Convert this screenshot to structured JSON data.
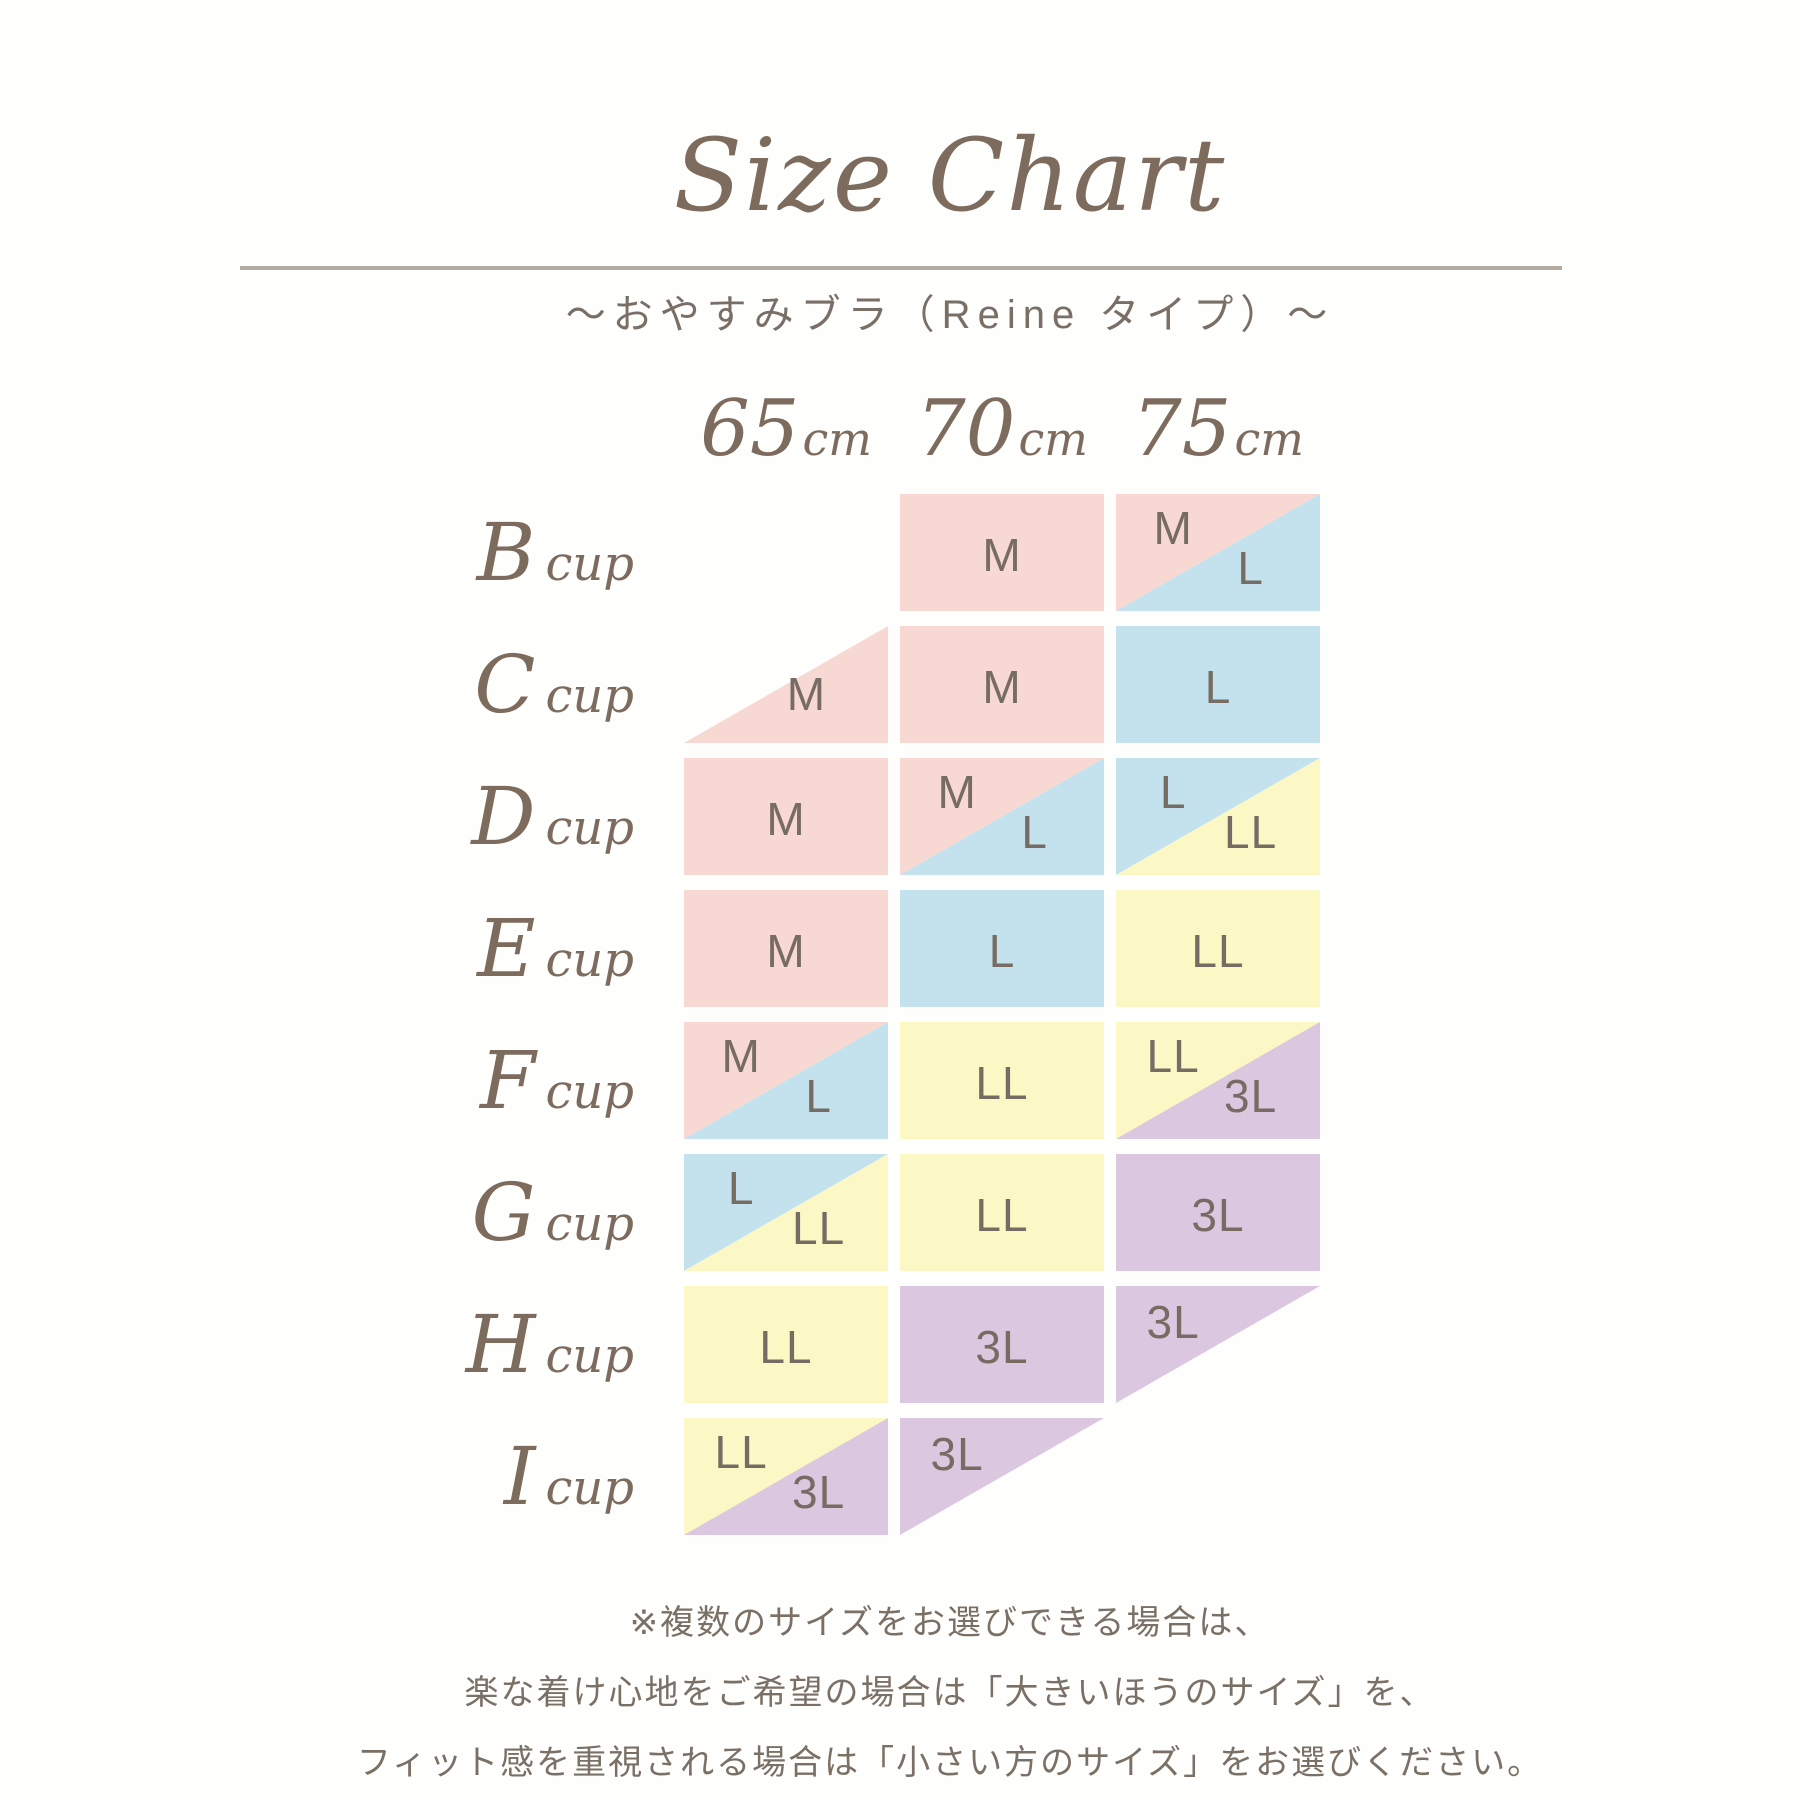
{
  "title": "Size Chart",
  "subtitle": "〜おやすみブラ（Reine タイプ）〜",
  "header": {
    "band_sizes": [
      "65",
      "70",
      "75"
    ],
    "unit": "cm"
  },
  "row_suffix": "cup",
  "size_colors": {
    "M": "#f8d8d2",
    "L": "#c4e2ee",
    "LL": "#fcf8c6",
    "3L": "#dbc7e0"
  },
  "grid": {
    "rows": [
      {
        "cup": "B",
        "cells": [
          {
            "type": "empty"
          },
          {
            "type": "full",
            "size": "M"
          },
          {
            "type": "split",
            "upper": "M",
            "lower": "L"
          }
        ]
      },
      {
        "cup": "C",
        "cells": [
          {
            "type": "half-lower",
            "size": "M"
          },
          {
            "type": "full",
            "size": "M"
          },
          {
            "type": "full",
            "size": "L"
          }
        ]
      },
      {
        "cup": "D",
        "cells": [
          {
            "type": "full",
            "size": "M"
          },
          {
            "type": "split",
            "upper": "M",
            "lower": "L"
          },
          {
            "type": "split",
            "upper": "L",
            "lower": "LL"
          }
        ]
      },
      {
        "cup": "E",
        "cells": [
          {
            "type": "full",
            "size": "M"
          },
          {
            "type": "full",
            "size": "L"
          },
          {
            "type": "full",
            "size": "LL"
          }
        ]
      },
      {
        "cup": "F",
        "cells": [
          {
            "type": "split",
            "upper": "M",
            "lower": "L"
          },
          {
            "type": "full",
            "size": "LL"
          },
          {
            "type": "split",
            "upper": "LL",
            "lower": "3L"
          }
        ]
      },
      {
        "cup": "G",
        "cells": [
          {
            "type": "split",
            "upper": "L",
            "lower": "LL"
          },
          {
            "type": "full",
            "size": "LL"
          },
          {
            "type": "full",
            "size": "3L"
          }
        ]
      },
      {
        "cup": "H",
        "cells": [
          {
            "type": "full",
            "size": "LL"
          },
          {
            "type": "full",
            "size": "3L"
          },
          {
            "type": "half-upper",
            "size": "3L"
          }
        ]
      },
      {
        "cup": "I",
        "cells": [
          {
            "type": "split",
            "upper": "LL",
            "lower": "3L"
          },
          {
            "type": "half-upper",
            "size": "3L"
          },
          {
            "type": "empty"
          }
        ]
      }
    ]
  },
  "footer": {
    "lines": [
      "※複数のサイズをお選びできる場合は、",
      "楽な着け心地をご希望の場合は「大きいほうのサイズ」を、",
      "フィット感を重視される場合は「小さい方のサイズ」をお選びください。"
    ]
  },
  "chart_data": {
    "type": "table",
    "title": "Size Chart",
    "subtitle": "〜おやすみブラ（Reine タイプ）〜",
    "columns": [
      "65cm",
      "70cm",
      "75cm"
    ],
    "rows": [
      "B cup",
      "C cup",
      "D cup",
      "E cup",
      "F cup",
      "G cup",
      "H cup",
      "I cup"
    ],
    "values": [
      [
        "",
        "M",
        "M / L"
      ],
      [
        "M",
        "M",
        "L"
      ],
      [
        "M",
        "M / L",
        "L / LL"
      ],
      [
        "M",
        "L",
        "LL"
      ],
      [
        "M / L",
        "LL",
        "LL / 3L"
      ],
      [
        "L / LL",
        "LL",
        "3L"
      ],
      [
        "LL",
        "3L",
        "3L"
      ],
      [
        "LL / 3L",
        "3L",
        ""
      ]
    ],
    "legend": {
      "M": "#f8d8d2",
      "L": "#c4e2ee",
      "LL": "#fcf8c6",
      "3L": "#dbc7e0"
    },
    "notes": [
      "※複数のサイズをお選びできる場合は、",
      "楽な着け心地をご希望の場合は「大きいほうのサイズ」を、",
      "フィット感を重視される場合は「小さい方のサイズ」をお選びください。"
    ]
  }
}
